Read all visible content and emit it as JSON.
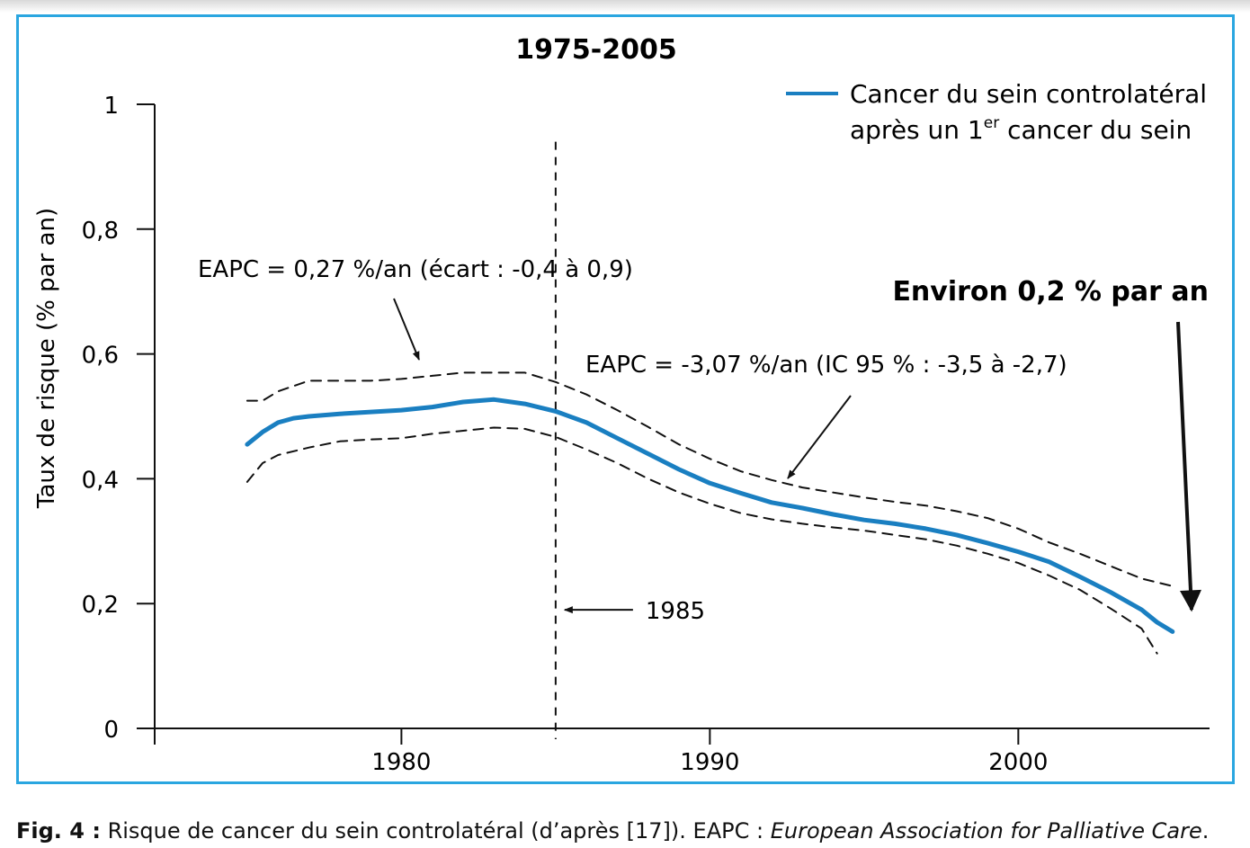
{
  "chart_data": {
    "type": "line",
    "title": "1975-2005",
    "xlabel": "",
    "ylabel": "Taux de risque (% par an)",
    "xlim": [
      1972,
      2006.2
    ],
    "ylim": [
      0,
      1
    ],
    "x_ticks": [
      {
        "value": 1980,
        "label": "1980"
      },
      {
        "value": 1990,
        "label": "1990"
      },
      {
        "value": 2000,
        "label": "2000"
      }
    ],
    "y_ticks": [
      {
        "value": 0,
        "label": "0"
      },
      {
        "value": 0.2,
        "label": "0,2"
      },
      {
        "value": 0.4,
        "label": "0,4"
      },
      {
        "value": 0.6,
        "label": "0,6"
      },
      {
        "value": 0.8,
        "label": "0,8"
      },
      {
        "value": 1,
        "label": "1"
      }
    ],
    "legend": {
      "position": "top-right",
      "line1": "Cancer du sein controlatéral",
      "line2_pre": "après un 1",
      "line2_sup": "er",
      "line2_post": " cancer du sein",
      "color": "#1a7fc1"
    },
    "series": [
      {
        "role": "estimate",
        "style": "solid",
        "color": "#1a7fc1",
        "x": [
          1975,
          1975.5,
          1976,
          1976.5,
          1977,
          1978,
          1979,
          1980,
          1981,
          1982,
          1983,
          1984,
          1985,
          1986,
          1987,
          1988,
          1989,
          1990,
          1991,
          1992,
          1993,
          1994,
          1995,
          1996,
          1997,
          1998,
          1999,
          2000,
          2001,
          2002,
          2003,
          2004,
          2004.5,
          2005
        ],
        "y": [
          0.455,
          0.475,
          0.49,
          0.497,
          0.5,
          0.504,
          0.507,
          0.51,
          0.515,
          0.523,
          0.527,
          0.52,
          0.508,
          0.49,
          0.465,
          0.44,
          0.415,
          0.393,
          0.377,
          0.362,
          0.353,
          0.343,
          0.334,
          0.328,
          0.32,
          0.31,
          0.297,
          0.283,
          0.267,
          0.243,
          0.218,
          0.19,
          0.17,
          0.155
        ]
      },
      {
        "role": "upper-bound",
        "style": "dashed",
        "color": "#111111",
        "x": [
          1975,
          1975.5,
          1976,
          1977,
          1978,
          1979,
          1980,
          1981,
          1982,
          1983,
          1984,
          1985,
          1986,
          1987,
          1988,
          1989,
          1990,
          1991,
          1992,
          1993,
          1994,
          1995,
          1996,
          1997,
          1998,
          1999,
          2000,
          2001,
          2002,
          2003,
          2004,
          2005
        ],
        "y": [
          0.525,
          0.525,
          0.54,
          0.557,
          0.557,
          0.557,
          0.56,
          0.565,
          0.57,
          0.57,
          0.57,
          0.555,
          0.535,
          0.51,
          0.483,
          0.455,
          0.432,
          0.412,
          0.398,
          0.386,
          0.378,
          0.37,
          0.363,
          0.357,
          0.348,
          0.337,
          0.32,
          0.298,
          0.28,
          0.26,
          0.24,
          0.228
        ]
      },
      {
        "role": "lower-bound",
        "style": "dashed",
        "color": "#111111",
        "x": [
          1975,
          1975.5,
          1976,
          1977,
          1978,
          1979,
          1980,
          1981,
          1982,
          1983,
          1984,
          1985,
          1986,
          1987,
          1988,
          1989,
          1990,
          1991,
          1992,
          1993,
          1994,
          1995,
          1996,
          1997,
          1998,
          1999,
          2000,
          2001,
          2002,
          2003,
          2004,
          2004.5
        ],
        "y": [
          0.395,
          0.425,
          0.438,
          0.45,
          0.46,
          0.463,
          0.465,
          0.472,
          0.477,
          0.482,
          0.48,
          0.467,
          0.447,
          0.425,
          0.4,
          0.378,
          0.36,
          0.345,
          0.335,
          0.328,
          0.322,
          0.317,
          0.31,
          0.303,
          0.293,
          0.28,
          0.265,
          0.245,
          0.222,
          0.192,
          0.16,
          0.12
        ]
      }
    ],
    "vline": {
      "x": 1985,
      "label": "1985",
      "y_top": 0.94
    },
    "annotations": {
      "eapc1": "EAPC = 0,27 %/an (écart : -0,4 à 0,9)",
      "eapc2": "EAPC = -3,07 %/an (IC 95 % : -3,5 à -2,7)",
      "environ": "Environ 0,2 % par an"
    }
  },
  "caption": {
    "label": "Fig. 4 :",
    "text": " Risque de cancer du sein controlatéral (d’après [17]). EAPC : ",
    "italic": "European Association for Palliative Care",
    "end": "."
  }
}
